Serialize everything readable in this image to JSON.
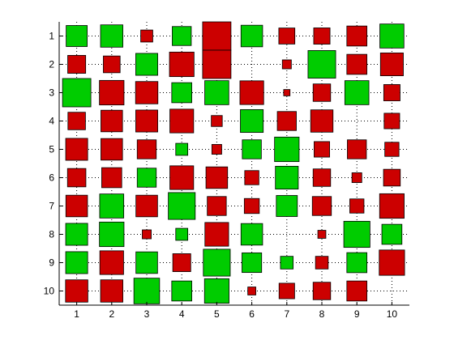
{
  "chart_data": {
    "type": "heatmap",
    "title": "",
    "xlabel": "",
    "ylabel": "",
    "x_ticks": [
      "1",
      "2",
      "3",
      "4",
      "5",
      "6",
      "7",
      "8",
      "9",
      "10"
    ],
    "y_ticks": [
      "1",
      "2",
      "3",
      "4",
      "5",
      "6",
      "7",
      "8",
      "9",
      "10"
    ],
    "xlim": [
      0.5,
      10.5
    ],
    "ylim": [
      10.5,
      0.5
    ],
    "grid": "dotted",
    "encoding": "square area ~ |value|; green = positive, red = negative",
    "colors": {
      "positive": "#00cc00",
      "negative": "#cc0000",
      "edge": "#000000",
      "grid": "#000000"
    },
    "matrix": [
      [
        0.55,
        0.62,
        -0.18,
        0.45,
        -1.0,
        0.58,
        -0.32,
        -0.33,
        -0.5,
        0.72
      ],
      [
        -0.4,
        -0.35,
        0.6,
        -0.75,
        -1.0,
        0.0,
        -0.1,
        0.95,
        -0.5,
        -0.65
      ],
      [
        1.0,
        -0.75,
        -0.62,
        0.5,
        0.72,
        -0.7,
        -0.05,
        -0.38,
        0.72,
        -0.33
      ],
      [
        -0.38,
        -0.58,
        -0.6,
        -0.7,
        -0.15,
        0.65,
        -0.45,
        -0.62,
        0.0,
        -0.3
      ],
      [
        -0.6,
        -0.58,
        -0.45,
        0.18,
        -0.12,
        0.45,
        0.75,
        -0.3,
        -0.45,
        -0.25
      ],
      [
        -0.42,
        -0.5,
        0.45,
        -0.7,
        -0.58,
        -0.25,
        0.65,
        -0.38,
        -0.12,
        -0.35
      ],
      [
        -0.58,
        0.72,
        -0.58,
        0.9,
        -0.45,
        -0.28,
        0.55,
        -0.45,
        -0.25,
        -0.75
      ],
      [
        0.6,
        0.75,
        -0.1,
        0.18,
        -0.7,
        0.58,
        0.0,
        -0.08,
        0.85,
        0.5
      ],
      [
        0.6,
        -0.7,
        0.58,
        -0.4,
        0.9,
        0.48,
        0.2,
        -0.2,
        0.5,
        -0.8
      ],
      [
        -0.62,
        -0.62,
        0.82,
        0.5,
        0.75,
        -0.08,
        -0.3,
        -0.38,
        -0.5,
        0.0
      ]
    ]
  }
}
